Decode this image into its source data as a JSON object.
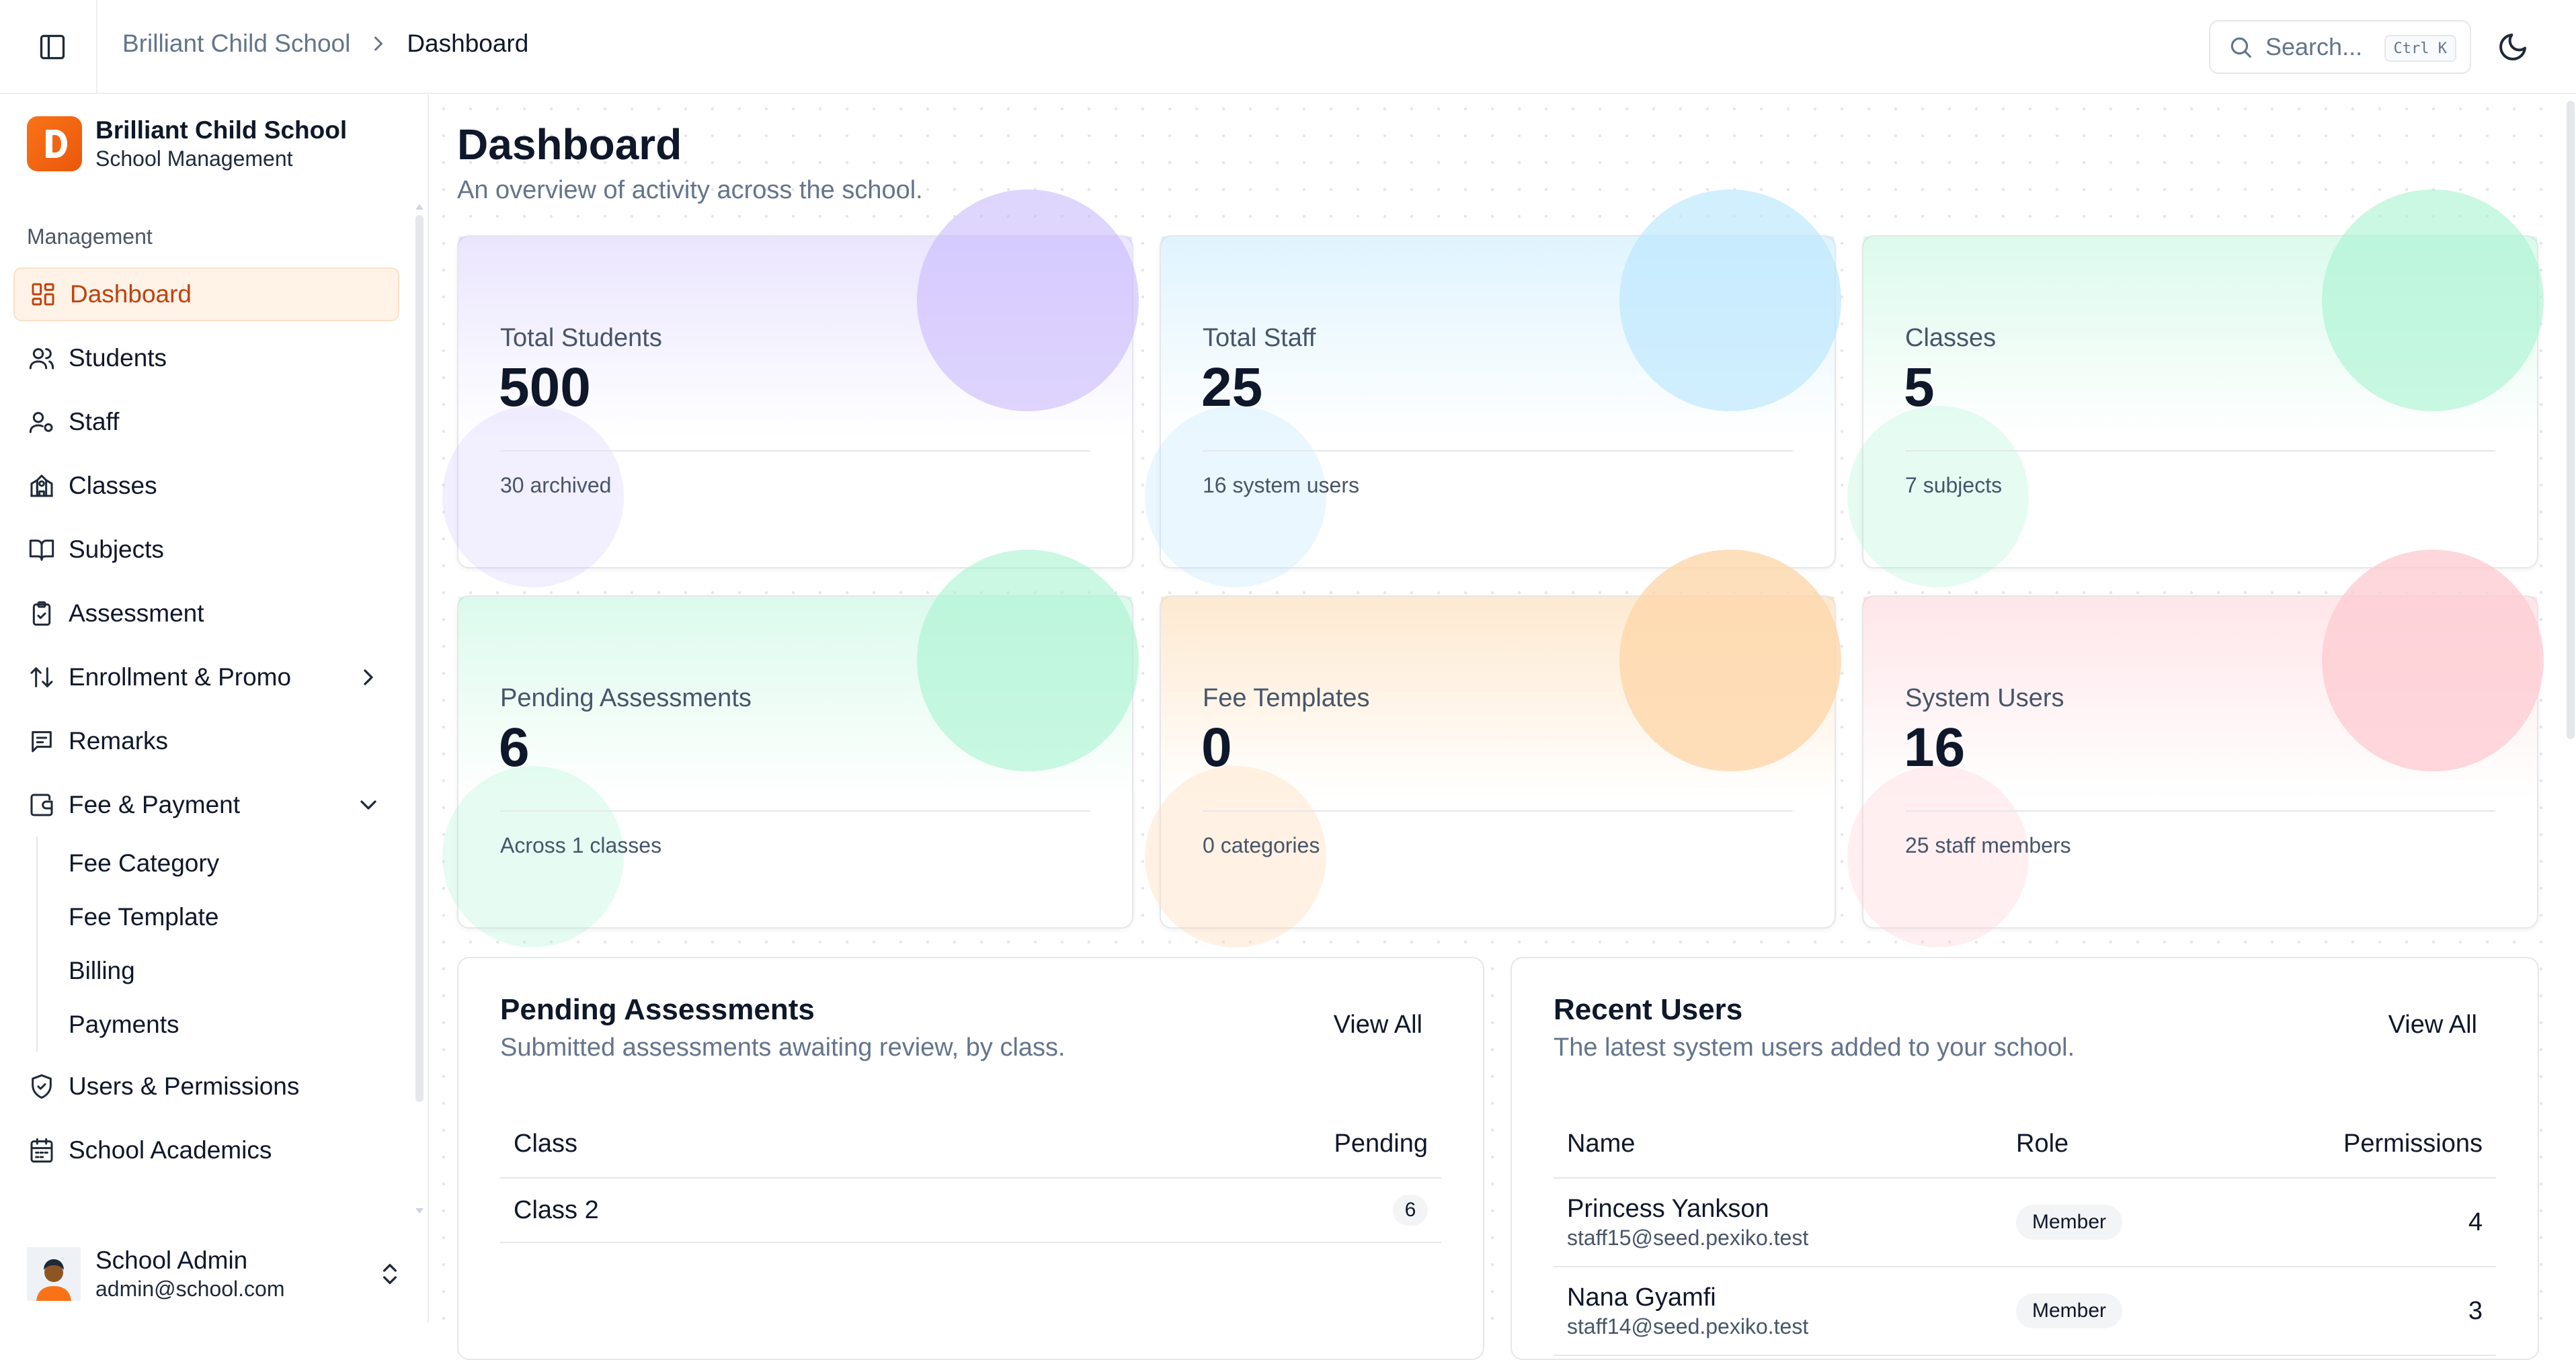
{
  "header": {
    "breadcrumb_root": "Brilliant Child School",
    "breadcrumb_current": "Dashboard",
    "search_placeholder": "Search...",
    "search_shortcut": "Ctrl K"
  },
  "sidebar": {
    "brand_name": "Brilliant Child School",
    "brand_subtitle": "School Management",
    "section_label": "Management",
    "items": [
      {
        "label": "Dashboard",
        "icon": "dashboard-icon"
      },
      {
        "label": "Students",
        "icon": "users-icon"
      },
      {
        "label": "Staff",
        "icon": "user-cog-icon"
      },
      {
        "label": "Classes",
        "icon": "school-icon"
      },
      {
        "label": "Subjects",
        "icon": "book-icon"
      },
      {
        "label": "Assessment",
        "icon": "clipboard-check-icon"
      },
      {
        "label": "Enrollment & Promo",
        "icon": "arrows-up-down-icon"
      },
      {
        "label": "Remarks",
        "icon": "message-icon"
      },
      {
        "label": "Fee & Payment",
        "icon": "wallet-icon"
      },
      {
        "label": "Users & Permissions",
        "icon": "shield-check-icon"
      },
      {
        "label": "School Academics",
        "icon": "calendar-icon"
      }
    ],
    "fee_subitems": [
      "Fee Category",
      "Fee Template",
      "Billing",
      "Payments"
    ],
    "user": {
      "name": "School Admin",
      "email": "admin@school.com"
    }
  },
  "main": {
    "title": "Dashboard",
    "subtitle": "An overview of activity across the school.",
    "stats": [
      {
        "label": "Total Students",
        "value": "500",
        "foot": "30 archived",
        "color": "#c4b5fd"
      },
      {
        "label": "Total Staff",
        "value": "25",
        "foot": "16 system users",
        "color": "#bae6fd"
      },
      {
        "label": "Classes",
        "value": "5",
        "foot": "7 subjects",
        "color": "#a7f3d0"
      },
      {
        "label": "Pending Assessments",
        "value": "6",
        "foot": "Across 1 classes",
        "color": "#a7f3d0"
      },
      {
        "label": "Fee Templates",
        "value": "0",
        "foot": "0 categories",
        "color": "#fed7aa"
      },
      {
        "label": "System Users",
        "value": "16",
        "foot": "25 staff members",
        "color": "#fecdd3"
      }
    ],
    "pending_panel": {
      "title": "Pending Assessments",
      "subtitle": "Submitted assessments awaiting review, by class.",
      "view_all": "View All",
      "col_class": "Class",
      "col_pending": "Pending",
      "rows": [
        {
          "class": "Class 2",
          "pending": "6"
        }
      ]
    },
    "users_panel": {
      "title": "Recent Users",
      "subtitle": "The latest system users added to your school.",
      "view_all": "View All",
      "col_name": "Name",
      "col_role": "Role",
      "col_permissions": "Permissions",
      "rows": [
        {
          "name": "Princess Yankson",
          "email": "staff15@seed.pexiko.test",
          "role": "Member",
          "permissions": "4"
        },
        {
          "name": "Nana Gyamfi",
          "email": "staff14@seed.pexiko.test",
          "role": "Member",
          "permissions": "3"
        }
      ]
    }
  }
}
